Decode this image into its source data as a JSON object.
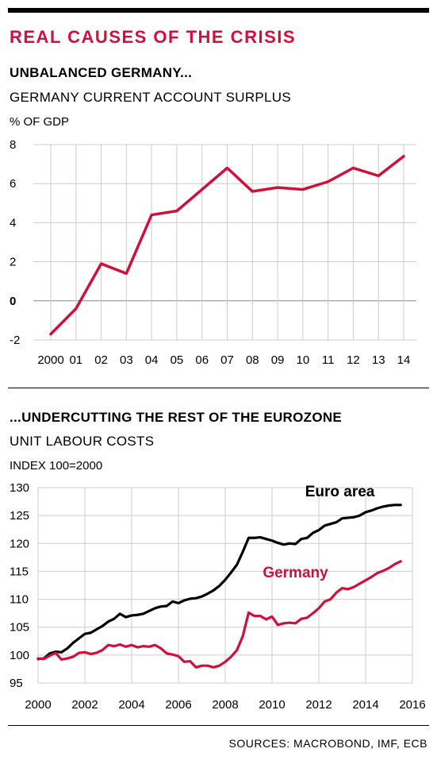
{
  "header": {
    "title": "REAL CAUSES OF THE CRISIS"
  },
  "colors": {
    "accent": "#d0103a",
    "black": "#000000",
    "grid": "#cccccc"
  },
  "chart1": {
    "title": "UNBALANCED GERMANY...",
    "subtitle": "GERMANY CURRENT ACCOUNT SURPLUS",
    "unit": "% OF GDP"
  },
  "chart2": {
    "title": "...UNDERCUTTING THE REST OF THE EUROZONE",
    "subtitle": "UNIT LABOUR COSTS",
    "unit": "INDEX 100=2000"
  },
  "footer": {
    "sources": "SOURCES: MACROBOND, IMF, ECB"
  },
  "chart_data": [
    {
      "type": "line",
      "title": "UNBALANCED GERMANY...",
      "subtitle": "GERMANY CURRENT ACCOUNT SURPLUS",
      "ylabel": "% OF GDP",
      "categories": [
        "2000",
        "01",
        "02",
        "03",
        "04",
        "05",
        "06",
        "07",
        "08",
        "09",
        "10",
        "11",
        "12",
        "13",
        "14"
      ],
      "ylim": [
        -2,
        8
      ],
      "yticks": [
        -2,
        0,
        2,
        4,
        6,
        8
      ],
      "grid": true,
      "series": [
        {
          "values": [
            -1.7,
            -0.4,
            1.9,
            1.4,
            4.4,
            4.6,
            5.7,
            6.8,
            5.6,
            5.8,
            5.7,
            6.1,
            6.8,
            6.4,
            7.4
          ]
        }
      ]
    },
    {
      "type": "line",
      "subtitle": "UNIT LABOUR COSTS",
      "ylabel": "INDEX 100=2000",
      "xlim": [
        2000,
        2016
      ],
      "xticks": [
        2000,
        2002,
        2004,
        2006,
        2008,
        2010,
        2012,
        2014,
        2016
      ],
      "ylim": [
        95,
        130
      ],
      "yticks": [
        95,
        100,
        105,
        110,
        115,
        120,
        125,
        130
      ],
      "grid": true,
      "series": [
        {
          "name": "Euro area",
          "x": [
            2000.0,
            2000.25,
            2000.5,
            2000.75,
            2001.0,
            2001.25,
            2001.5,
            2001.75,
            2002.0,
            2002.25,
            2002.5,
            2002.75,
            2003.0,
            2003.25,
            2003.5,
            2003.75,
            2004.0,
            2004.25,
            2004.5,
            2004.75,
            2005.0,
            2005.25,
            2005.5,
            2005.75,
            2006.0,
            2006.25,
            2006.5,
            2006.75,
            2007.0,
            2007.25,
            2007.5,
            2007.75,
            2008.0,
            2008.25,
            2008.5,
            2008.75,
            2009.0,
            2009.25,
            2009.5,
            2009.75,
            2010.0,
            2010.25,
            2010.5,
            2010.75,
            2011.0,
            2011.25,
            2011.5,
            2011.75,
            2012.0,
            2012.25,
            2012.5,
            2012.75,
            2013.0,
            2013.25,
            2013.5,
            2013.75,
            2014.0,
            2014.25,
            2014.5,
            2014.75,
            2015.0,
            2015.25,
            2015.5
          ],
          "values": [
            99.3,
            99.4,
            100.3,
            100.6,
            100.5,
            101.2,
            102.2,
            103.0,
            103.8,
            104.0,
            104.6,
            105.2,
            106.0,
            106.5,
            107.4,
            106.8,
            107.1,
            107.2,
            107.4,
            107.9,
            108.4,
            108.7,
            108.8,
            109.6,
            109.3,
            109.8,
            110.1,
            110.2,
            110.5,
            111.0,
            111.6,
            112.4,
            113.5,
            114.8,
            116.2,
            118.5,
            121.0,
            121.0,
            121.1,
            120.8,
            120.5,
            120.1,
            119.8,
            120.0,
            119.9,
            120.8,
            121.0,
            121.9,
            122.4,
            123.2,
            123.5,
            123.8,
            124.5,
            124.6,
            124.7,
            125.0,
            125.6,
            125.9,
            126.3,
            126.6,
            126.8,
            126.9,
            126.9
          ]
        },
        {
          "name": "Germany",
          "x": [
            2000.0,
            2000.25,
            2000.5,
            2000.75,
            2001.0,
            2001.25,
            2001.5,
            2001.75,
            2002.0,
            2002.25,
            2002.5,
            2002.75,
            2003.0,
            2003.25,
            2003.5,
            2003.75,
            2004.0,
            2004.25,
            2004.5,
            2004.75,
            2005.0,
            2005.25,
            2005.5,
            2005.75,
            2006.0,
            2006.25,
            2006.5,
            2006.75,
            2007.0,
            2007.25,
            2007.5,
            2007.75,
            2008.0,
            2008.25,
            2008.5,
            2008.75,
            2009.0,
            2009.25,
            2009.5,
            2009.75,
            2010.0,
            2010.25,
            2010.5,
            2010.75,
            2011.0,
            2011.25,
            2011.5,
            2011.75,
            2012.0,
            2012.25,
            2012.5,
            2012.75,
            2013.0,
            2013.25,
            2013.5,
            2013.75,
            2014.0,
            2014.25,
            2014.5,
            2014.75,
            2015.0,
            2015.25,
            2015.5
          ],
          "values": [
            99.4,
            99.3,
            99.9,
            100.4,
            99.2,
            99.4,
            99.7,
            100.4,
            100.5,
            100.2,
            100.4,
            100.9,
            101.8,
            101.6,
            101.9,
            101.5,
            101.8,
            101.4,
            101.6,
            101.5,
            101.8,
            101.2,
            100.3,
            100.1,
            99.8,
            98.8,
            98.9,
            97.8,
            98.1,
            98.1,
            97.8,
            98.1,
            98.8,
            99.7,
            100.9,
            103.4,
            107.6,
            107.0,
            107.0,
            106.4,
            106.9,
            105.4,
            105.7,
            105.8,
            105.7,
            106.5,
            106.7,
            107.5,
            108.4,
            109.6,
            110.0,
            111.2,
            112.0,
            111.8,
            112.2,
            112.8,
            113.4,
            114.0,
            114.7,
            115.1,
            115.6,
            116.3,
            116.8
          ]
        }
      ]
    }
  ]
}
